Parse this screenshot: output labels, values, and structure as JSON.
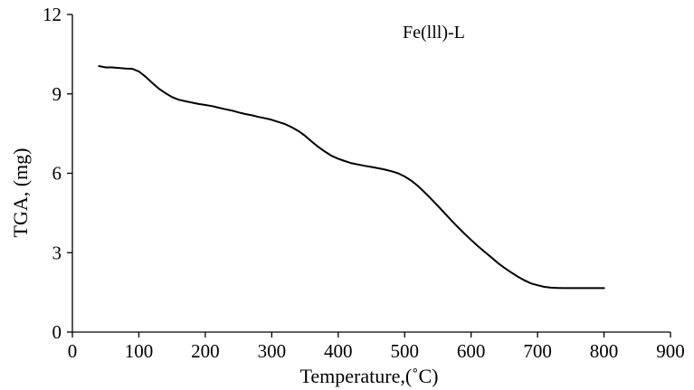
{
  "chart_data": {
    "type": "line",
    "title": "",
    "xlabel": "Temperature,(˚C)",
    "ylabel": "TGA, (mg)",
    "xlim": [
      0,
      900
    ],
    "ylim": [
      0,
      12
    ],
    "xticks": [
      0,
      100,
      200,
      300,
      400,
      500,
      600,
      700,
      800,
      900
    ],
    "yticks": [
      0,
      3,
      6,
      9,
      12
    ],
    "grid": false,
    "legend": {
      "position": "top-right",
      "label": "Fe(lll)-L"
    },
    "series": [
      {
        "name": "Fe(lll)-L",
        "color": "#000000",
        "x": [
          40,
          50,
          60,
          70,
          80,
          90,
          100,
          110,
          120,
          130,
          140,
          150,
          160,
          170,
          180,
          190,
          200,
          210,
          220,
          230,
          240,
          250,
          260,
          270,
          280,
          290,
          300,
          310,
          320,
          330,
          340,
          350,
          360,
          370,
          380,
          390,
          400,
          410,
          420,
          430,
          440,
          450,
          460,
          470,
          480,
          490,
          500,
          510,
          520,
          530,
          540,
          550,
          560,
          570,
          580,
          590,
          600,
          610,
          620,
          630,
          640,
          650,
          660,
          670,
          680,
          690,
          700,
          710,
          720,
          730,
          740,
          750,
          760,
          770,
          780,
          790,
          800
        ],
        "y": [
          10.05,
          10.0,
          10.0,
          9.98,
          9.96,
          9.95,
          9.85,
          9.65,
          9.42,
          9.2,
          9.03,
          8.88,
          8.78,
          8.72,
          8.67,
          8.62,
          8.58,
          8.54,
          8.48,
          8.42,
          8.37,
          8.3,
          8.24,
          8.19,
          8.13,
          8.08,
          8.02,
          7.94,
          7.86,
          7.74,
          7.6,
          7.42,
          7.2,
          7.0,
          6.82,
          6.66,
          6.55,
          6.46,
          6.38,
          6.33,
          6.28,
          6.24,
          6.19,
          6.14,
          6.08,
          6.0,
          5.88,
          5.72,
          5.52,
          5.28,
          5.03,
          4.77,
          4.5,
          4.23,
          3.97,
          3.72,
          3.48,
          3.25,
          3.04,
          2.83,
          2.62,
          2.43,
          2.26,
          2.1,
          1.96,
          1.84,
          1.77,
          1.71,
          1.68,
          1.67,
          1.66,
          1.66,
          1.66,
          1.66,
          1.66,
          1.66,
          1.66
        ]
      }
    ]
  }
}
